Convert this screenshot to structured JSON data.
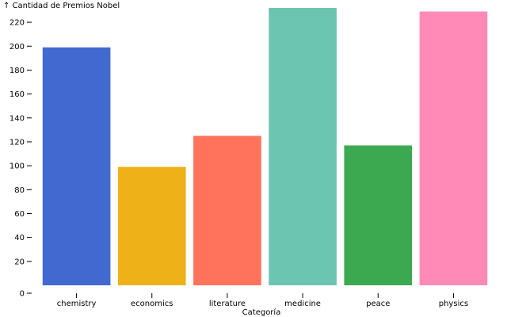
{
  "chart_data": {
    "type": "bar",
    "title": "",
    "xlabel": "Categoría",
    "ylabel": "↑ Cantidad de Premios Nobel",
    "categories": [
      "chemistry",
      "economics",
      "literature",
      "medicine",
      "peace",
      "physics"
    ],
    "values": [
      199,
      99,
      125,
      232,
      117,
      229
    ],
    "colors": [
      "#4269d0",
      "#efb118",
      "#ff725c",
      "#6cc5b0",
      "#3ca951",
      "#ff8ab7"
    ],
    "ylim": [
      0,
      232
    ],
    "yticks": [
      0,
      20,
      40,
      60,
      80,
      100,
      120,
      140,
      160,
      180,
      200,
      220
    ],
    "grid": false,
    "legend": "none"
  }
}
